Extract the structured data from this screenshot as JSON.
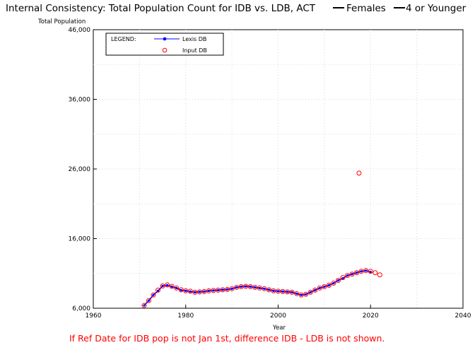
{
  "chart_data": {
    "type": "line",
    "title": "Internal Consistency: Total Population Count for IDB vs. LDB, ACT",
    "title_legend": [
      {
        "label": "Females"
      },
      {
        "label": "4 or Younger"
      }
    ],
    "ylabel": "Total Population",
    "xlabel": "Year",
    "xlim": [
      1960,
      2040
    ],
    "ylim": [
      6000,
      46000
    ],
    "x_ticks": [
      1960,
      1980,
      2000,
      2020,
      2040
    ],
    "x_tick_labels": [
      "1960",
      "1980",
      "2000",
      "2020",
      "2040"
    ],
    "y_ticks": [
      6000,
      16000,
      26000,
      36000,
      46000
    ],
    "y_tick_labels": [
      "6,000",
      "16,000",
      "26,000",
      "36,000",
      "46,000"
    ],
    "grid": true,
    "legend": {
      "title": "LEGEND:",
      "placement": "top-left",
      "entries": [
        "Lexis DB",
        "Input DB"
      ]
    },
    "series": [
      {
        "name": "Lexis DB",
        "color": "#0000ff",
        "style": "line-with-dots",
        "x": [
          1971,
          1972,
          1973,
          1974,
          1975,
          1976,
          1977,
          1978,
          1979,
          1980,
          1981,
          1982,
          1983,
          1984,
          1985,
          1986,
          1987,
          1988,
          1989,
          1990,
          1991,
          1992,
          1993,
          1994,
          1995,
          1996,
          1997,
          1998,
          1999,
          2000,
          2001,
          2002,
          2003,
          2004,
          2005,
          2006,
          2007,
          2008,
          2009,
          2010,
          2011,
          2012,
          2013,
          2014,
          2015,
          2016,
          2017,
          2018,
          2019,
          2020
        ],
        "y": [
          6400,
          7100,
          7900,
          8500,
          9200,
          9300,
          9100,
          8900,
          8600,
          8500,
          8400,
          8300,
          8350,
          8400,
          8500,
          8550,
          8600,
          8650,
          8700,
          8800,
          9000,
          9100,
          9150,
          9100,
          9000,
          8900,
          8800,
          8650,
          8500,
          8450,
          8400,
          8350,
          8300,
          8100,
          7900,
          8000,
          8300,
          8600,
          8900,
          9100,
          9300,
          9600,
          10000,
          10300,
          10700,
          10900,
          11100,
          11300,
          11400,
          11200
        ]
      },
      {
        "name": "Input DB",
        "color": "#ff0000",
        "style": "open-circles",
        "x": [
          1971,
          1972,
          1973,
          1974,
          1975,
          1976,
          1977,
          1978,
          1979,
          1980,
          1981,
          1982,
          1983,
          1984,
          1985,
          1986,
          1987,
          1988,
          1989,
          1990,
          1991,
          1992,
          1993,
          1994,
          1995,
          1996,
          1997,
          1998,
          1999,
          2000,
          2001,
          2002,
          2003,
          2004,
          2005,
          2006,
          2007,
          2008,
          2009,
          2010,
          2011,
          2012,
          2013,
          2014,
          2015,
          2016,
          2017,
          2017.5,
          2018,
          2019,
          2020,
          2021,
          2022
        ],
        "y": [
          6400,
          7100,
          7900,
          8600,
          9200,
          9350,
          9150,
          8900,
          8650,
          8500,
          8450,
          8300,
          8350,
          8400,
          8500,
          8550,
          8600,
          8650,
          8700,
          8800,
          9000,
          9100,
          9150,
          9100,
          9000,
          8900,
          8800,
          8650,
          8500,
          8450,
          8400,
          8350,
          8300,
          8100,
          7900,
          8000,
          8300,
          8600,
          8900,
          9100,
          9300,
          9600,
          10000,
          10400,
          10700,
          10900,
          11100,
          25400,
          11300,
          11400,
          11300,
          11100,
          10800
        ]
      }
    ]
  },
  "footnote": "If Ref Date for IDB pop is not Jan 1st, difference IDB - LDB is not shown."
}
